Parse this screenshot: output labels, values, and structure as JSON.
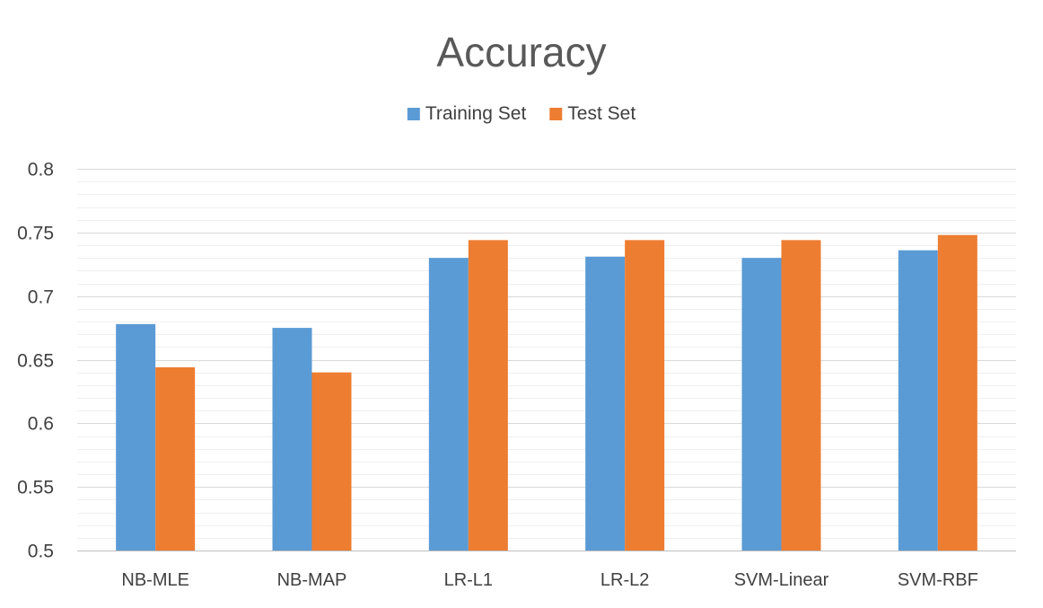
{
  "chart_data": {
    "type": "bar",
    "title": "Accuracy",
    "categories": [
      "NB-MLE",
      "NB-MAP",
      "LR-L1",
      "LR-L2",
      "SVM-Linear",
      "SVM-RBF"
    ],
    "series": [
      {
        "name": "Training Set",
        "color": "#5B9BD5",
        "values": [
          0.678,
          0.675,
          0.73,
          0.731,
          0.73,
          0.736
        ]
      },
      {
        "name": "Test Set",
        "color": "#ED7D31",
        "values": [
          0.644,
          0.64,
          0.744,
          0.744,
          0.744,
          0.748
        ]
      }
    ],
    "ylim": [
      0.5,
      0.8
    ],
    "yticks": [
      "0.5",
      "0.55",
      "0.6",
      "0.65",
      "0.7",
      "0.75",
      "0.8"
    ],
    "ytick_values": [
      0.5,
      0.55,
      0.6,
      0.65,
      0.7,
      0.75,
      0.8
    ],
    "minor_step": 0.01,
    "xlabel": "",
    "ylabel": "",
    "grid": true,
    "legend_position": "top",
    "gridline_color": "#D9D9D9",
    "minor_gridline_color": "#EFEFEF",
    "axis_color": "#BFBFBF"
  }
}
